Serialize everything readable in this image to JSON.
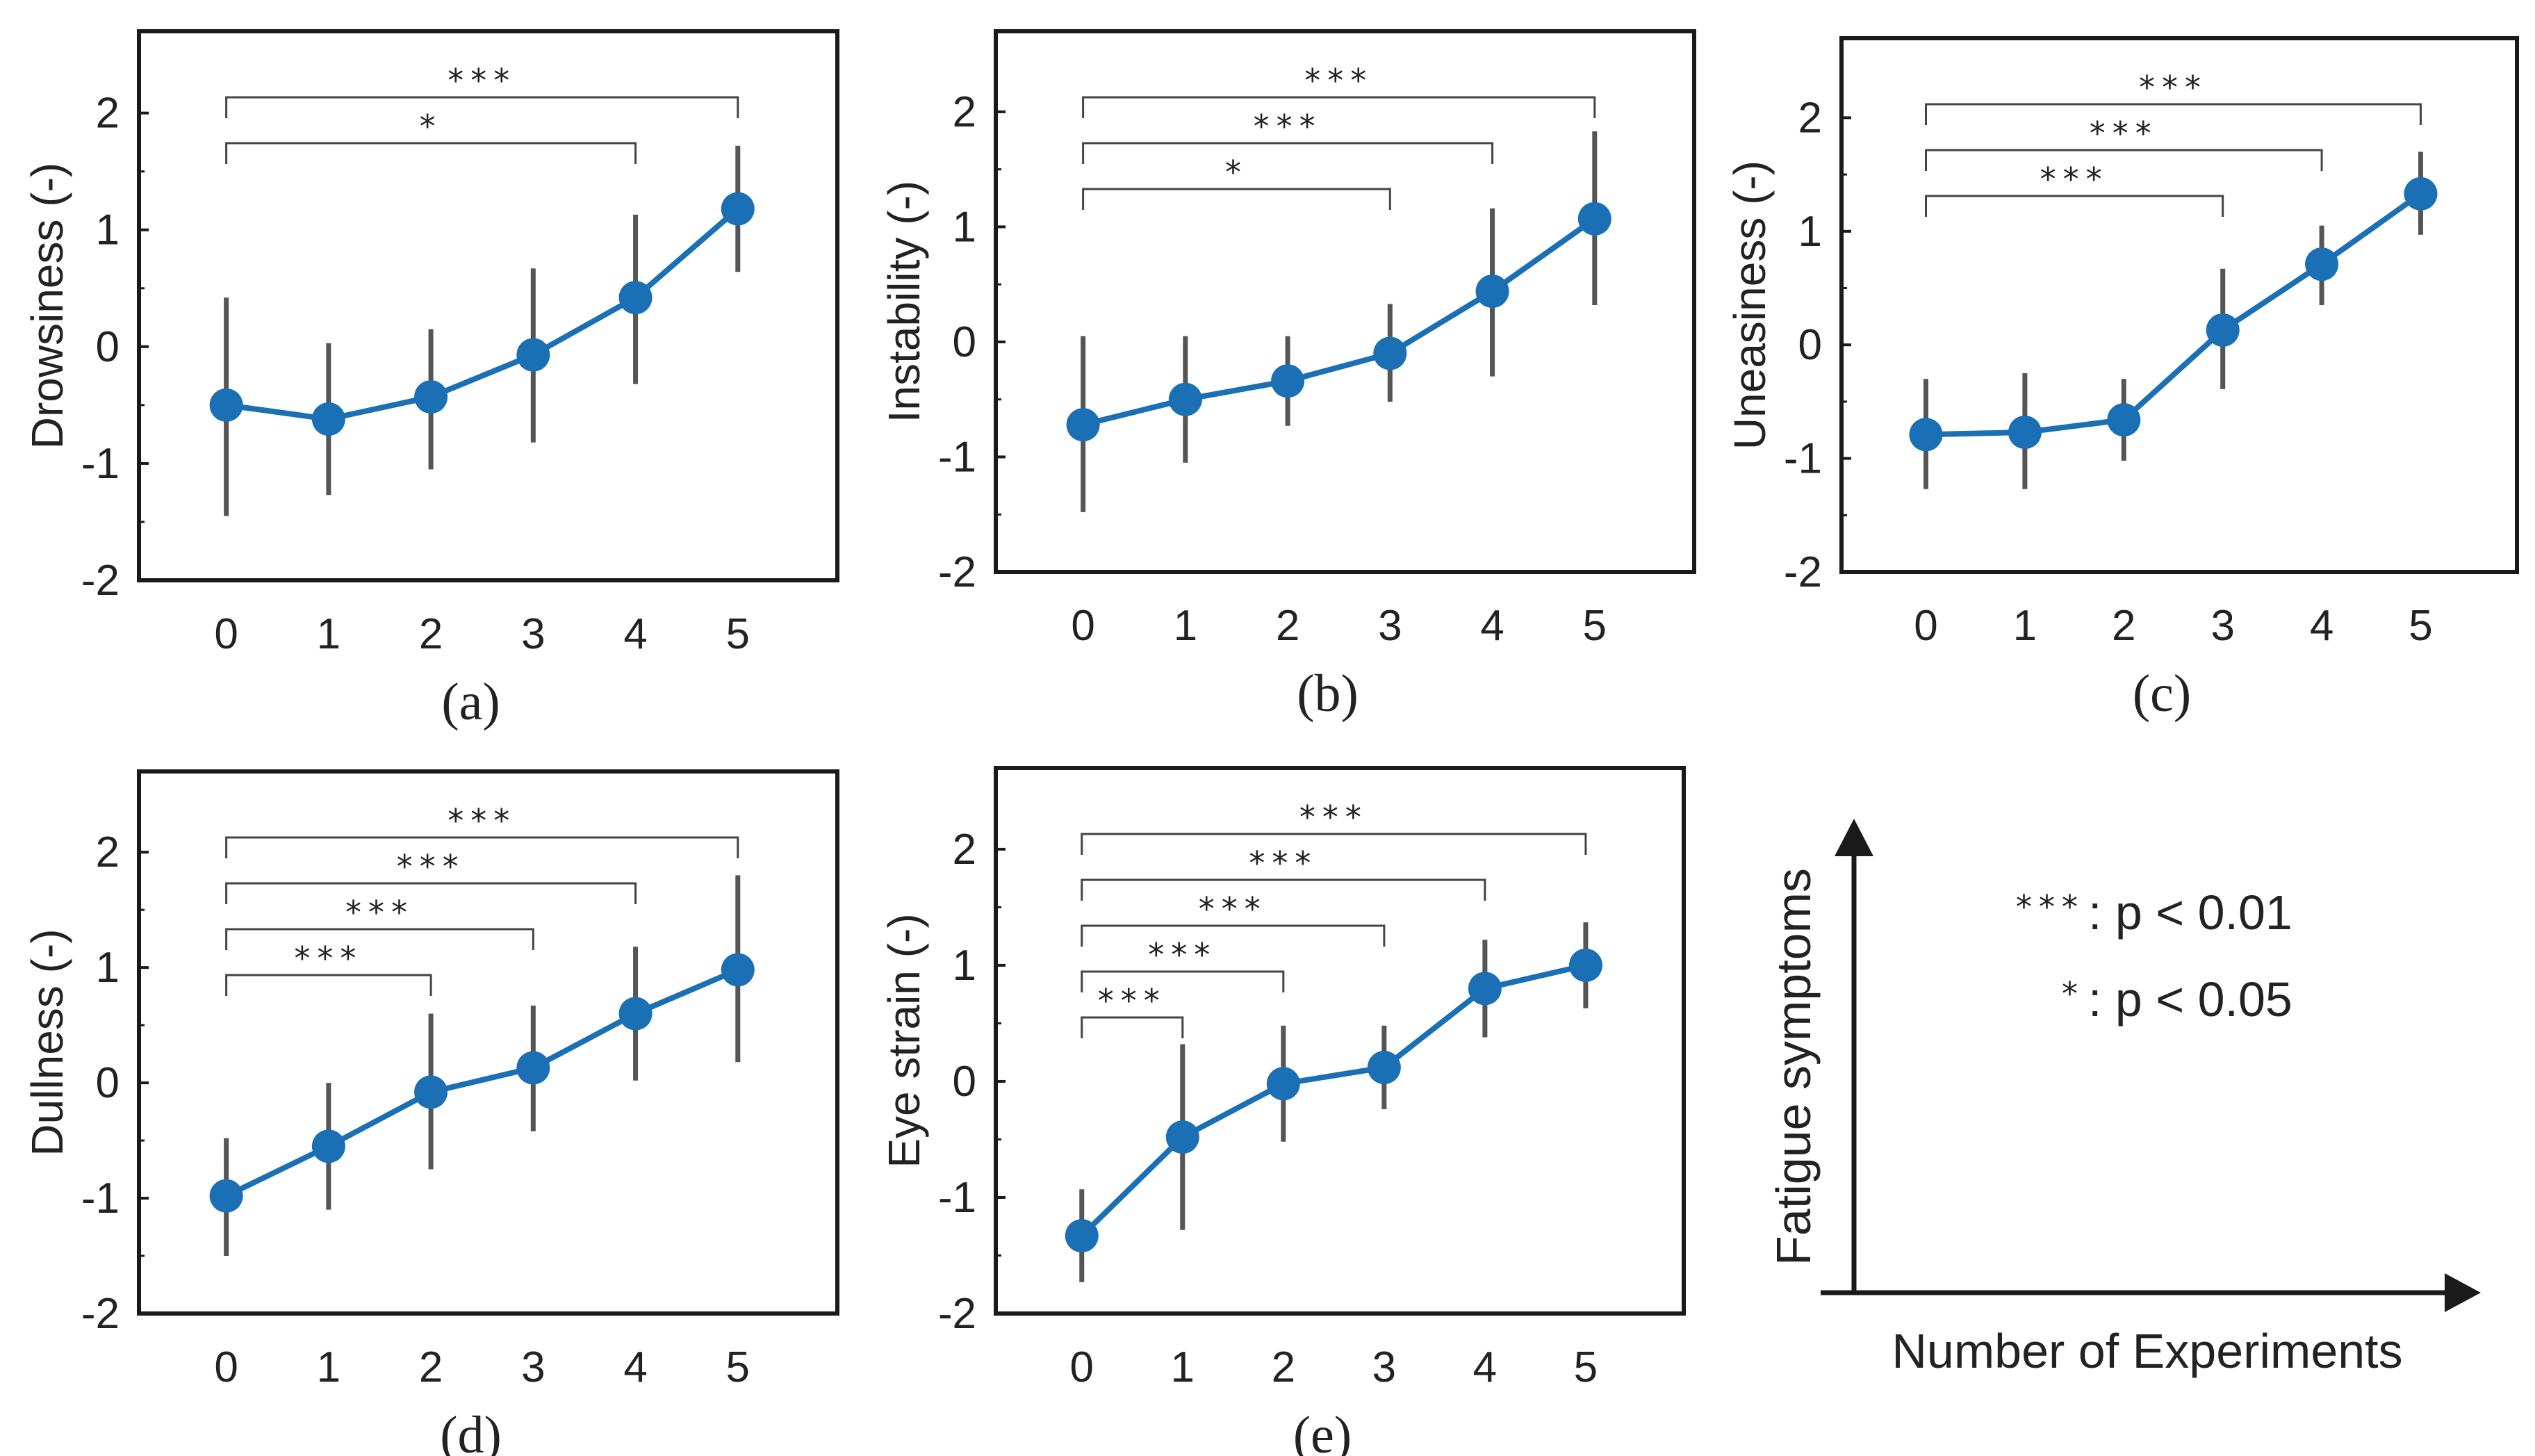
{
  "chart_data": [
    {
      "type": "line",
      "panel": "(a)",
      "ylabel": "Drowsiness (-)",
      "x": [
        0,
        1,
        2,
        3,
        4,
        5
      ],
      "xticks": [
        "0",
        "1",
        "2",
        "3",
        "4",
        "5"
      ],
      "yticks": [
        "2",
        "1",
        "0",
        "-1",
        "-2"
      ],
      "ylim": [
        -2,
        2.7
      ],
      "series": [
        {
          "name": "mean",
          "values": [
            -0.5,
            -0.62,
            -0.43,
            -0.07,
            0.42,
            1.18
          ],
          "err_low": [
            -1.45,
            -1.27,
            -1.05,
            -0.82,
            -0.32,
            0.64
          ],
          "err_high": [
            0.42,
            0.03,
            0.15,
            0.67,
            1.13,
            1.72
          ]
        }
      ],
      "significance": [
        {
          "from": 0,
          "to": 4,
          "label": "*"
        },
        {
          "from": 0,
          "to": 5,
          "label": "***"
        }
      ]
    },
    {
      "type": "line",
      "panel": "(b)",
      "ylabel": "Instability (-)",
      "x": [
        0,
        1,
        2,
        3,
        4,
        5
      ],
      "xticks": [
        "0",
        "1",
        "2",
        "3",
        "4",
        "5"
      ],
      "yticks": [
        "2",
        "1",
        "0",
        "-1",
        "-2"
      ],
      "ylim": [
        -2,
        2.7
      ],
      "series": [
        {
          "name": "mean",
          "values": [
            -0.72,
            -0.5,
            -0.34,
            -0.1,
            0.44,
            1.07
          ],
          "err_low": [
            -1.48,
            -1.05,
            -0.73,
            -0.52,
            -0.3,
            0.32
          ],
          "err_high": [
            0.05,
            0.05,
            0.05,
            0.33,
            1.16,
            1.83
          ]
        }
      ],
      "significance": [
        {
          "from": 0,
          "to": 3,
          "label": "*"
        },
        {
          "from": 0,
          "to": 4,
          "label": "***"
        },
        {
          "from": 0,
          "to": 5,
          "label": "***"
        }
      ]
    },
    {
      "type": "line",
      "panel": "(c)",
      "ylabel": "Uneasiness (-)",
      "x": [
        0,
        1,
        2,
        3,
        4,
        5
      ],
      "xticks": [
        "0",
        "1",
        "2",
        "3",
        "4",
        "5"
      ],
      "yticks": [
        "2",
        "1",
        "0",
        "-1",
        "-2"
      ],
      "ylim": [
        -2,
        2.7
      ],
      "series": [
        {
          "name": "mean",
          "values": [
            -0.79,
            -0.77,
            -0.66,
            0.13,
            0.71,
            1.33
          ],
          "err_low": [
            -1.27,
            -1.27,
            -1.02,
            -0.39,
            0.35,
            0.97
          ],
          "err_high": [
            -0.3,
            -0.25,
            -0.3,
            0.67,
            1.05,
            1.7
          ]
        }
      ],
      "significance": [
        {
          "from": 0,
          "to": 3,
          "label": "***"
        },
        {
          "from": 0,
          "to": 4,
          "label": "***"
        },
        {
          "from": 0,
          "to": 5,
          "label": "***"
        }
      ]
    },
    {
      "type": "line",
      "panel": "(d)",
      "ylabel": "Dullness (-)",
      "x": [
        0,
        1,
        2,
        3,
        4,
        5
      ],
      "xticks": [
        "0",
        "1",
        "2",
        "3",
        "4",
        "5"
      ],
      "yticks": [
        "2",
        "1",
        "0",
        "-1",
        "-2"
      ],
      "ylim": [
        -2,
        2.7
      ],
      "series": [
        {
          "name": "mean",
          "values": [
            -0.98,
            -0.55,
            -0.08,
            0.13,
            0.6,
            0.98
          ],
          "err_low": [
            -1.5,
            -1.1,
            -0.75,
            -0.42,
            0.02,
            0.18
          ],
          "err_high": [
            -0.48,
            0.0,
            0.6,
            0.67,
            1.18,
            1.8
          ]
        }
      ],
      "significance": [
        {
          "from": 0,
          "to": 2,
          "label": "***"
        },
        {
          "from": 0,
          "to": 3,
          "label": "***"
        },
        {
          "from": 0,
          "to": 4,
          "label": "***"
        },
        {
          "from": 0,
          "to": 5,
          "label": "***"
        }
      ]
    },
    {
      "type": "line",
      "panel": "(e)",
      "ylabel": "Eye strain (-)",
      "x": [
        0,
        1,
        2,
        3,
        4,
        5
      ],
      "xticks": [
        "0",
        "1",
        "2",
        "3",
        "4",
        "5"
      ],
      "yticks": [
        "2",
        "1",
        "0",
        "-1",
        "-2"
      ],
      "ylim": [
        -2,
        2.7
      ],
      "series": [
        {
          "name": "mean",
          "values": [
            -1.33,
            -0.48,
            -0.02,
            0.12,
            0.8,
            1.0
          ],
          "err_low": [
            -1.73,
            -1.28,
            -0.52,
            -0.24,
            0.38,
            0.63
          ],
          "err_high": [
            -0.93,
            0.32,
            0.48,
            0.48,
            1.22,
            1.37
          ]
        }
      ],
      "significance": [
        {
          "from": 0,
          "to": 1,
          "label": "***"
        },
        {
          "from": 0,
          "to": 2,
          "label": "***"
        },
        {
          "from": 0,
          "to": 3,
          "label": "***"
        },
        {
          "from": 0,
          "to": 4,
          "label": "***"
        },
        {
          "from": 0,
          "to": 5,
          "label": "***"
        }
      ]
    }
  ],
  "legend": {
    "yaxis_label": "Fatigue symptoms",
    "xaxis_label": "Number of Experiments",
    "entries": [
      {
        "stars": "***",
        "text": ": p < 0.01"
      },
      {
        "stars": "*",
        "text": ": p < 0.05"
      }
    ]
  },
  "colors": {
    "series": "#1a6fb5",
    "errorbar": "#555555",
    "axis": "#1a1a1a",
    "bracket": "#444444"
  }
}
